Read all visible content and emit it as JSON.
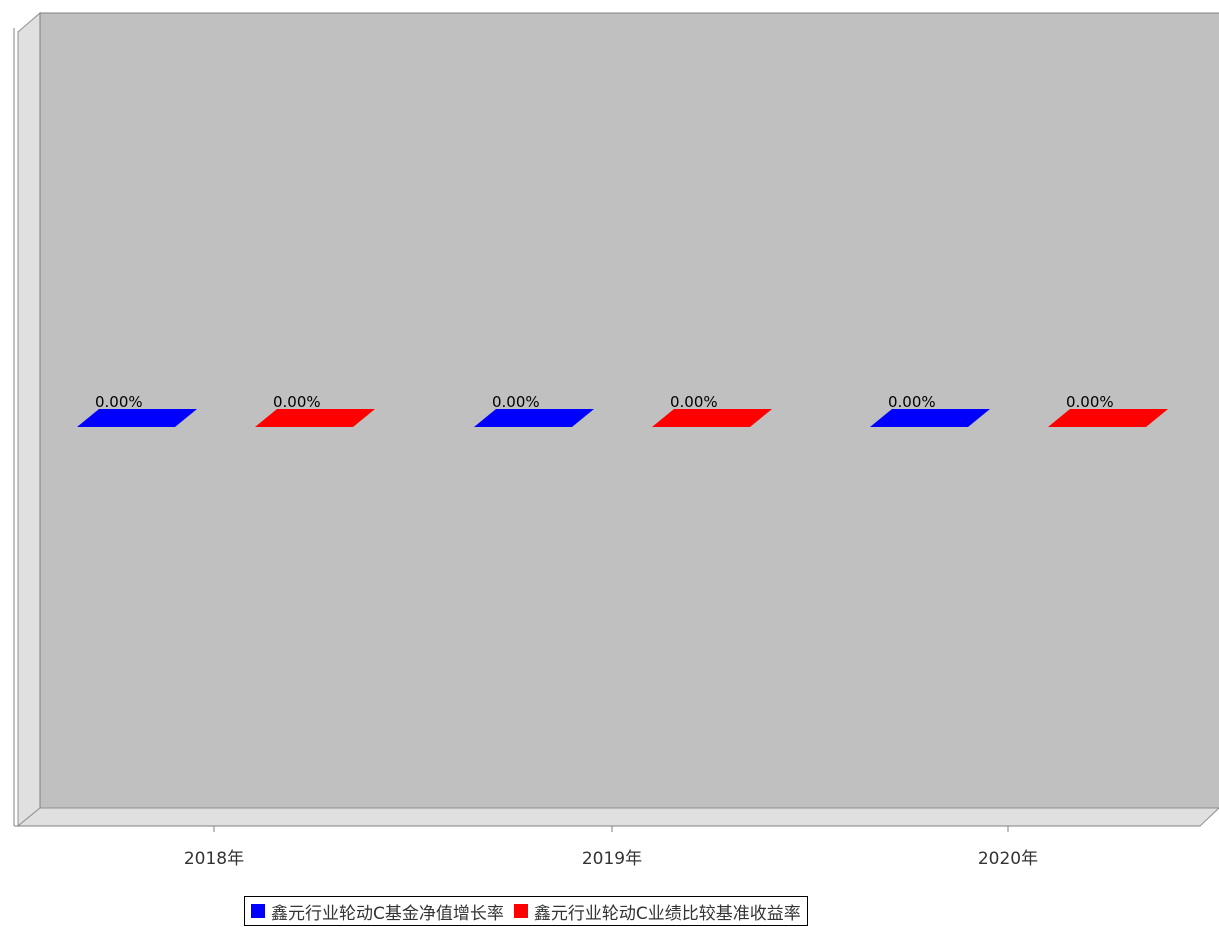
{
  "chart_data": {
    "type": "bar",
    "categories": [
      "2018年",
      "2019年",
      "2020年"
    ],
    "series": [
      {
        "name": "鑫元行业轮动C基金净值增长率",
        "values": [
          0.0,
          0.0,
          0.0
        ],
        "labels": [
          "0.00%",
          "0.00%",
          "0.00%"
        ],
        "color": "#0000ff"
      },
      {
        "name": "鑫元行业轮动C业绩比较基准收益率",
        "values": [
          0.0,
          0.0,
          0.0
        ],
        "labels": [
          "0.00%",
          "0.00%",
          "0.00%"
        ],
        "color": "#ff0000"
      }
    ],
    "title": "",
    "xlabel": "",
    "ylabel": "",
    "legend_position": "bottom-center",
    "grid": false,
    "plot_background": "#c0c0c0",
    "three_d": true
  }
}
